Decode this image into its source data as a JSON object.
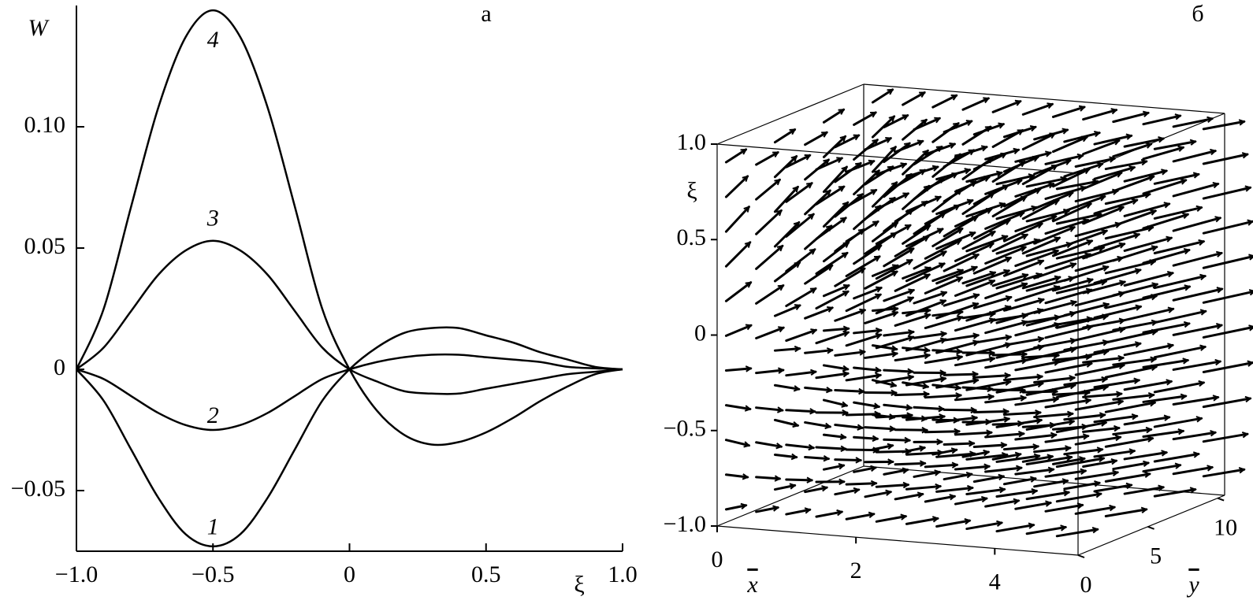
{
  "chart_data": [
    {
      "type": "line",
      "panel_label": "а",
      "ylabel": "W",
      "xlabel": "ξ",
      "x": [
        -1,
        -0.9,
        -0.8,
        -0.7,
        -0.6,
        -0.5,
        -0.4,
        -0.3,
        -0.2,
        -0.1,
        0,
        0.1,
        0.2,
        0.3,
        0.4,
        0.5,
        0.6,
        0.7,
        0.8,
        0.9,
        1
      ],
      "series": [
        {
          "name": "1",
          "color": "#000000",
          "values": [
            0,
            -0.013,
            -0.033,
            -0.053,
            -0.068,
            -0.073,
            -0.068,
            -0.053,
            -0.033,
            -0.013,
            0,
            0.009,
            0.015,
            0.017,
            0.017,
            0.014,
            0.011,
            0.007,
            0.004,
            0.001,
            0
          ]
        },
        {
          "name": "2",
          "color": "#000000",
          "values": [
            0,
            -0.004,
            -0.011,
            -0.018,
            -0.023,
            -0.025,
            -0.023,
            -0.018,
            -0.011,
            -0.004,
            0,
            0.003,
            0.005,
            0.006,
            0.006,
            0.005,
            0.004,
            0.003,
            0.001,
            0.0004,
            0
          ]
        },
        {
          "name": "3",
          "color": "#000000",
          "values": [
            0,
            0.009,
            0.024,
            0.039,
            0.049,
            0.053,
            0.049,
            0.039,
            0.024,
            0.009,
            0,
            -0.005,
            -0.009,
            -0.01,
            -0.01,
            -0.008,
            -0.006,
            -0.004,
            -0.002,
            -0.001,
            0
          ]
        },
        {
          "name": "4",
          "color": "#000000",
          "values": [
            0,
            0.025,
            0.067,
            0.108,
            0.137,
            0.148,
            0.137,
            0.108,
            0.067,
            0.025,
            0,
            -0.017,
            -0.027,
            -0.031,
            -0.03,
            -0.026,
            -0.02,
            -0.013,
            -0.007,
            -0.002,
            0
          ]
        }
      ],
      "xlim": [
        -1,
        1
      ],
      "ylim": [
        -0.075,
        0.15
      ],
      "xticks": [
        {
          "value": -1,
          "label": "−1.0"
        },
        {
          "value": -0.5,
          "label": "−0.5"
        },
        0,
        0.5,
        {
          "value": 1,
          "label": "1.0"
        }
      ],
      "yticks": [
        {
          "value": -0.05,
          "label": "−0.05"
        },
        0,
        0.05,
        {
          "value": 0.1,
          "label": "0.10"
        }
      ]
    },
    {
      "type": "quiver3d",
      "panel_label": "б",
      "xlabel": "x",
      "ylabel": "y",
      "zlabel": "ξ",
      "xlim": [
        0,
        5.2
      ],
      "ylim": [
        0,
        10.5
      ],
      "zlim": [
        -1,
        1
      ],
      "xticks": [
        0,
        2,
        4
      ],
      "yticks": [
        0,
        5,
        10
      ],
      "zticks": [
        {
          "value": -1,
          "label": "−1.0"
        },
        {
          "value": -0.5,
          "label": "−0.5"
        },
        0,
        0.5,
        {
          "value": 1,
          "label": "1.0"
        }
      ]
    }
  ]
}
